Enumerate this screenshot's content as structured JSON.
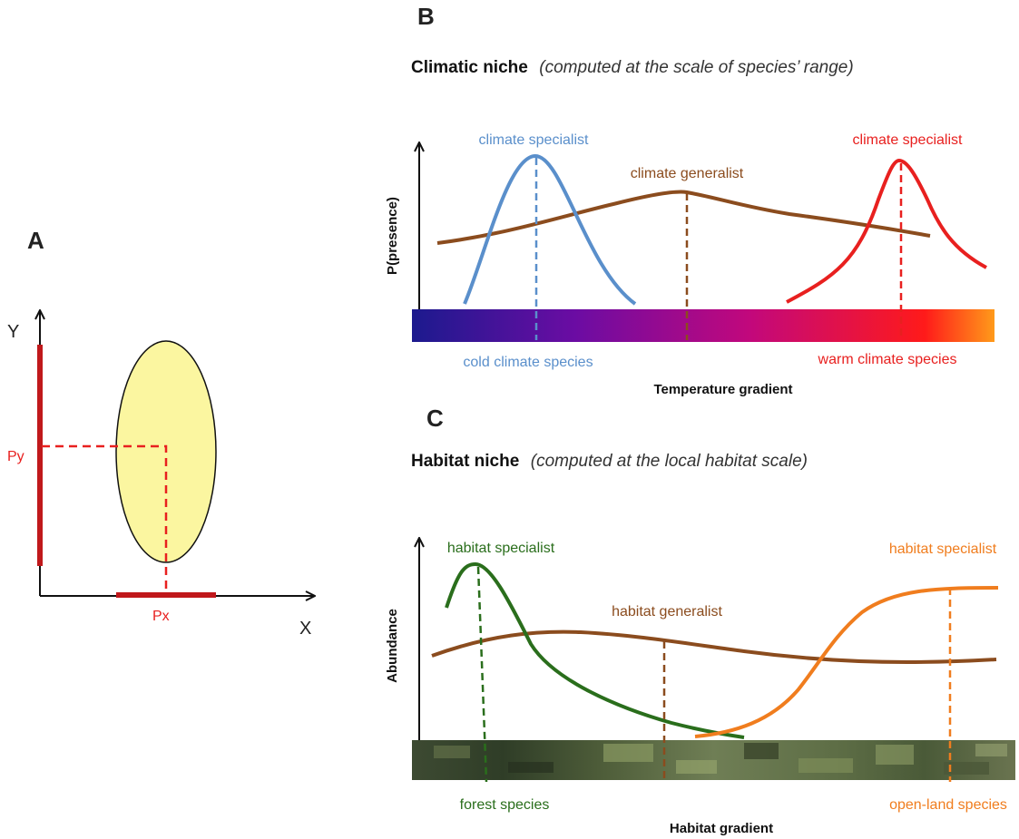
{
  "panel_a": {
    "letter": "A",
    "y_axis_label": "Y",
    "x_axis_label": "X",
    "py_label": "Py",
    "px_label": "Px"
  },
  "panel_b": {
    "letter": "B",
    "title_bold": "Climatic niche",
    "title_italic": "(computed at the scale of species’ range)",
    "y_axis_label": "P(presence)",
    "x_axis_label": "Temperature gradient",
    "curves": [
      {
        "label": "climate specialist",
        "color": "#5a8fcb"
      },
      {
        "label": "climate generalist",
        "color": "#8b4c1e"
      },
      {
        "label": "climate specialist",
        "color": "#e8201f"
      }
    ],
    "bar_labels": [
      {
        "label": "cold climate species",
        "color": "#5a8fcb"
      },
      {
        "label": "warm climate species",
        "color": "#e8201f"
      }
    ],
    "gradient_colors": [
      "#1c1a8e",
      "#6b0ca3",
      "#c2087c",
      "#ff1a1a",
      "#ff9a1a"
    ]
  },
  "panel_c": {
    "letter": "C",
    "title_bold": "Habitat niche",
    "title_italic": "(computed at the local habitat scale)",
    "y_axis_label": "Abundance",
    "x_axis_label": "Habitat gradient",
    "curves": [
      {
        "label": "habitat specialist",
        "color": "#2a6e1c"
      },
      {
        "label": "habitat generalist",
        "color": "#8b4c1e"
      },
      {
        "label": "habitat specialist",
        "color": "#f07d1e"
      }
    ],
    "bar_labels": [
      {
        "label": "forest species",
        "color": "#2a6e1c"
      },
      {
        "label": "open-land species",
        "color": "#f07d1e"
      }
    ]
  }
}
